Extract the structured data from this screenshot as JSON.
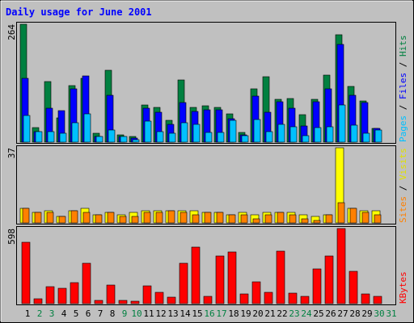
{
  "chart_data": {
    "type": "bar",
    "title": "Daily usage for June 2001",
    "categories": [
      "1",
      "2",
      "3",
      "4",
      "5",
      "6",
      "7",
      "8",
      "9",
      "10",
      "11",
      "12",
      "13",
      "14",
      "15",
      "16",
      "17",
      "18",
      "19",
      "20",
      "21",
      "22",
      "23",
      "24",
      "25",
      "26",
      "27",
      "28",
      "29",
      "30",
      "31"
    ],
    "weekend_days": [
      2,
      3,
      9,
      10,
      16,
      17,
      23,
      24,
      30,
      31
    ],
    "panels": [
      {
        "id": "hits",
        "ymax_label": "264",
        "ymax": 264,
        "right_label": [
          "Pages",
          "Files",
          "Hits"
        ],
        "series": [
          {
            "name": "Hits",
            "color": "#008040",
            "values": [
              264,
              33,
              136,
              55,
              127,
              143,
              20,
              161,
              17,
              12,
              83,
              78,
              49,
              140,
              78,
              81,
              78,
              63,
              22,
              120,
              146,
              96,
              98,
              62,
              95,
              150,
              241,
              124,
              92,
              30,
              0
            ]
          },
          {
            "name": "Files",
            "color": "#0000FF",
            "values": [
              143,
              24,
              76,
              70,
              119,
              148,
              13,
              105,
              13,
              9,
              76,
              67,
              40,
              89,
              69,
              72,
              72,
              53,
              17,
              103,
              67,
              91,
              76,
              37,
              90,
              120,
              219,
              105,
              88,
              30,
              0
            ]
          },
          {
            "name": "Pages",
            "color": "#00C0FF",
            "values": [
              60,
              24,
              24,
              20,
              43,
              63,
              12,
              28,
              12,
              6,
              47,
              23,
              19,
              43,
              40,
              21,
              22,
              49,
              15,
              51,
              23,
              40,
              35,
              14,
              32,
              35,
              83,
              38,
              19,
              27,
              0
            ]
          }
        ]
      },
      {
        "id": "visits",
        "ymax_label": "37",
        "ymax": 37,
        "right_label": [
          "Sites",
          "Visits"
        ],
        "series": [
          {
            "name": "Visits",
            "color": "#FFFF00",
            "values": [
              7,
              5,
              6,
              3,
              6,
              7,
              4,
              5,
              4,
              5,
              6,
              6,
              6,
              6,
              6,
              5,
              5,
              4,
              5,
              4,
              5,
              5,
              5,
              4,
              3,
              4,
              37,
              7,
              6,
              6,
              0
            ]
          },
          {
            "name": "Sites",
            "color": "#FF8000",
            "values": [
              7,
              5,
              5,
              3,
              6,
              5,
              4,
              5,
              3,
              3,
              5,
              5,
              6,
              5,
              4,
              5,
              5,
              4,
              4,
              2,
              4,
              5,
              4,
              2,
              1,
              4,
              10,
              7,
              5,
              4,
              0
            ]
          }
        ]
      },
      {
        "id": "kbytes",
        "ymax_label": "598",
        "ymax": 598,
        "right_label": [
          "KBytes"
        ],
        "series": [
          {
            "name": "KBytes",
            "color": "#FF0000",
            "values": [
              490,
              40,
              135,
              120,
              165,
              320,
              25,
              145,
              25,
              20,
              140,
              90,
              50,
              320,
              450,
              60,
              380,
              410,
              80,
              175,
              90,
              415,
              85,
              60,
              275,
              380,
              598,
              255,
              80,
              60,
              0
            ]
          }
        ]
      }
    ]
  },
  "colors": {
    "title": "#0000FF",
    "frame_dark": "#606060",
    "frame_light": "#FFFFFF",
    "day_weekday": "#000000",
    "day_weekend": "#008040"
  }
}
